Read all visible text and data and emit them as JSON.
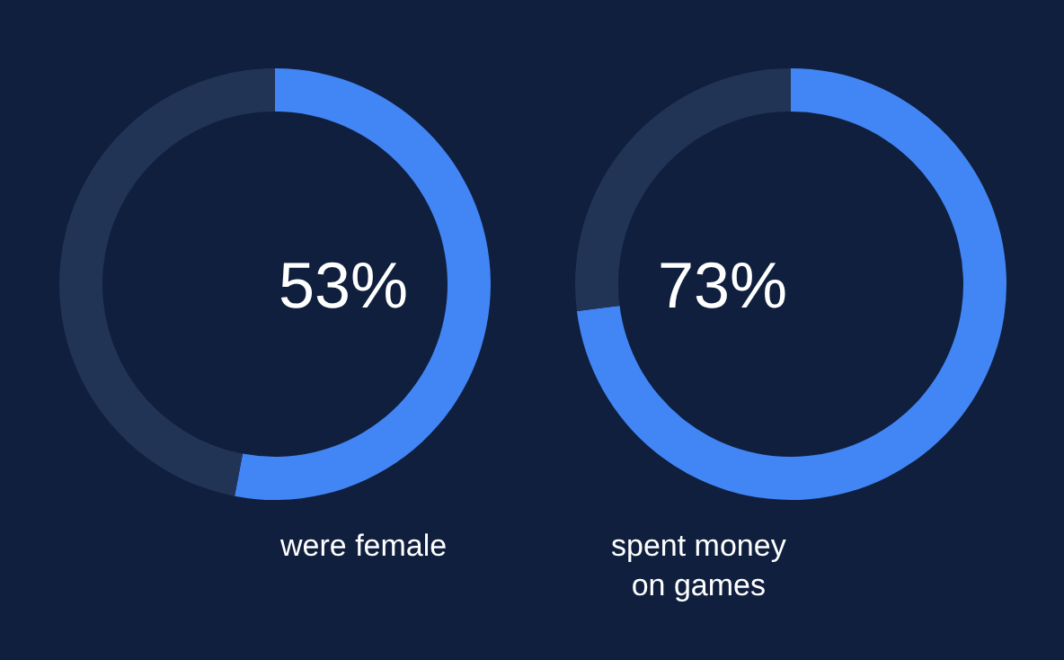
{
  "chart_data": [
    {
      "type": "donut",
      "categories": [
        null,
        null
      ],
      "values": [
        53,
        47
      ],
      "colors": [
        "#4285f4",
        "#223455"
      ],
      "value_labels": [
        "53%",
        null
      ],
      "annotations": [
        "were female"
      ]
    },
    {
      "type": "donut",
      "categories": [
        null,
        null
      ],
      "values": [
        73,
        27
      ],
      "colors": [
        "#4285f4",
        "#223455"
      ],
      "value_labels": [
        "73%",
        null
      ],
      "annotations": [
        "spent money\non games"
      ]
    }
  ]
}
